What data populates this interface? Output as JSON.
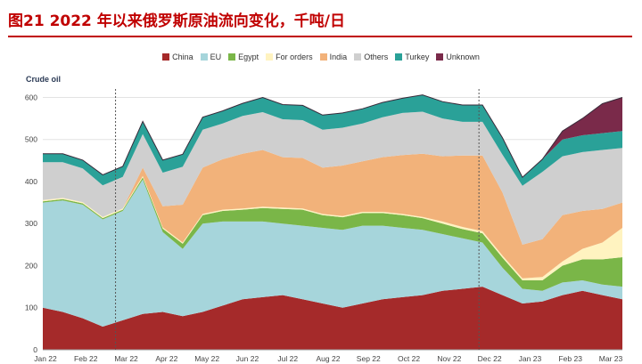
{
  "header": {
    "figure_title": "图21  2022 年以来俄罗斯原油流向变化，千吨/日"
  },
  "chart_data": {
    "type": "area",
    "stacked": true,
    "title": "Crude oil",
    "ylim": [
      0,
      620
    ],
    "yticks": [
      0,
      100,
      200,
      300,
      400,
      500,
      600
    ],
    "xtick_labels": [
      "Jan 22",
      "Feb 22",
      "Mar 22",
      "Apr 22",
      "May 22",
      "Jun 22",
      "Jul 22",
      "Aug 22",
      "Sep 22",
      "Oct 22",
      "Nov 22",
      "Dec 22",
      "Jan 23",
      "Feb 23",
      "Mar 23"
    ],
    "markers": [
      "Mar 22",
      "Dec 22"
    ],
    "legend_position": "top-center",
    "x": [
      "Jan 22",
      "mid-Jan 22",
      "Feb 22",
      "mid-Feb 22",
      "Mar 22",
      "mid-Mar 22",
      "Apr 22",
      "mid-Apr 22",
      "May 22",
      "mid-May 22",
      "Jun 22",
      "mid-Jun 22",
      "Jul 22",
      "mid-Jul 22",
      "Aug 22",
      "mid-Aug 22",
      "Sep 22",
      "mid-Sep 22",
      "Oct 22",
      "mid-Oct 22",
      "Nov 22",
      "mid-Nov 22",
      "Dec 22",
      "mid-Dec 22",
      "Jan 23",
      "mid-Jan 23",
      "Feb 23",
      "mid-Feb 23",
      "Mar 23",
      "mid-Mar 23"
    ],
    "series": [
      {
        "name": "China",
        "color": "#a52a2a",
        "values": [
          100,
          90,
          75,
          55,
          70,
          85,
          90,
          80,
          90,
          105,
          120,
          125,
          130,
          120,
          110,
          100,
          110,
          120,
          125,
          130,
          140,
          145,
          150,
          130,
          110,
          115,
          130,
          140,
          130,
          120
        ]
      },
      {
        "name": "EU",
        "color": "#a6d5db",
        "values": [
          250,
          265,
          270,
          255,
          260,
          320,
          190,
          160,
          210,
          200,
          185,
          180,
          170,
          175,
          180,
          185,
          185,
          175,
          165,
          155,
          135,
          120,
          105,
          65,
          35,
          25,
          30,
          25,
          25,
          30
        ]
      },
      {
        "name": "Egypt",
        "color": "#7ab648",
        "values": [
          3,
          3,
          3,
          3,
          3,
          5,
          8,
          12,
          20,
          25,
          28,
          32,
          35,
          38,
          30,
          30,
          30,
          30,
          30,
          28,
          25,
          22,
          22,
          24,
          20,
          25,
          40,
          50,
          60,
          70
        ]
      },
      {
        "name": "For orders",
        "color": "#fff3c0",
        "values": [
          3,
          3,
          3,
          3,
          3,
          3,
          3,
          3,
          3,
          3,
          3,
          3,
          3,
          3,
          3,
          3,
          3,
          3,
          3,
          3,
          5,
          5,
          5,
          5,
          5,
          8,
          10,
          25,
          40,
          70
        ]
      },
      {
        "name": "India",
        "color": "#f2b27a",
        "values": [
          0,
          0,
          0,
          0,
          0,
          20,
          50,
          90,
          110,
          120,
          130,
          135,
          120,
          120,
          110,
          120,
          120,
          130,
          140,
          150,
          155,
          170,
          180,
          150,
          80,
          90,
          110,
          90,
          80,
          60
        ]
      },
      {
        "name": "Others",
        "color": "#cfcfcf",
        "values": [
          90,
          85,
          80,
          75,
          75,
          80,
          80,
          90,
          90,
          85,
          90,
          90,
          90,
          90,
          90,
          90,
          90,
          95,
          100,
          100,
          90,
          80,
          80,
          90,
          140,
          160,
          140,
          140,
          140,
          130
        ]
      },
      {
        "name": "Turkey",
        "color": "#2aa198",
        "values": [
          20,
          20,
          20,
          25,
          25,
          30,
          30,
          30,
          30,
          30,
          30,
          35,
          35,
          35,
          35,
          35,
          35,
          35,
          35,
          40,
          40,
          40,
          40,
          40,
          20,
          30,
          40,
          40,
          40,
          40
        ]
      },
      {
        "name": "Unknown",
        "color": "#7a2a4a",
        "values": [
          0,
          0,
          0,
          0,
          0,
          0,
          0,
          0,
          0,
          0,
          0,
          0,
          0,
          0,
          0,
          0,
          0,
          0,
          0,
          0,
          0,
          0,
          0,
          0,
          0,
          0,
          20,
          40,
          70,
          80
        ]
      }
    ]
  }
}
